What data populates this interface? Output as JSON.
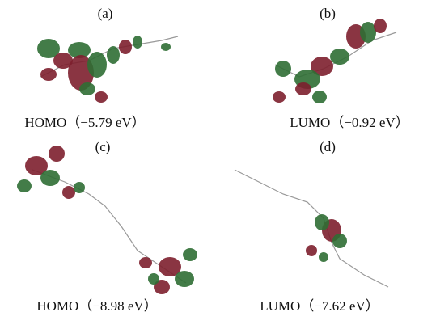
{
  "panels": [
    {
      "label": "(a)",
      "caption": "HOMO（−5.79 eV）"
    },
    {
      "label": "(b)",
      "caption": "LUMO（−0.92 eV）"
    },
    {
      "label": "(c)",
      "caption": "HOMO（−8.98 eV）"
    },
    {
      "label": "(d)",
      "caption": "LUMO（−7.62 eV）"
    }
  ]
}
